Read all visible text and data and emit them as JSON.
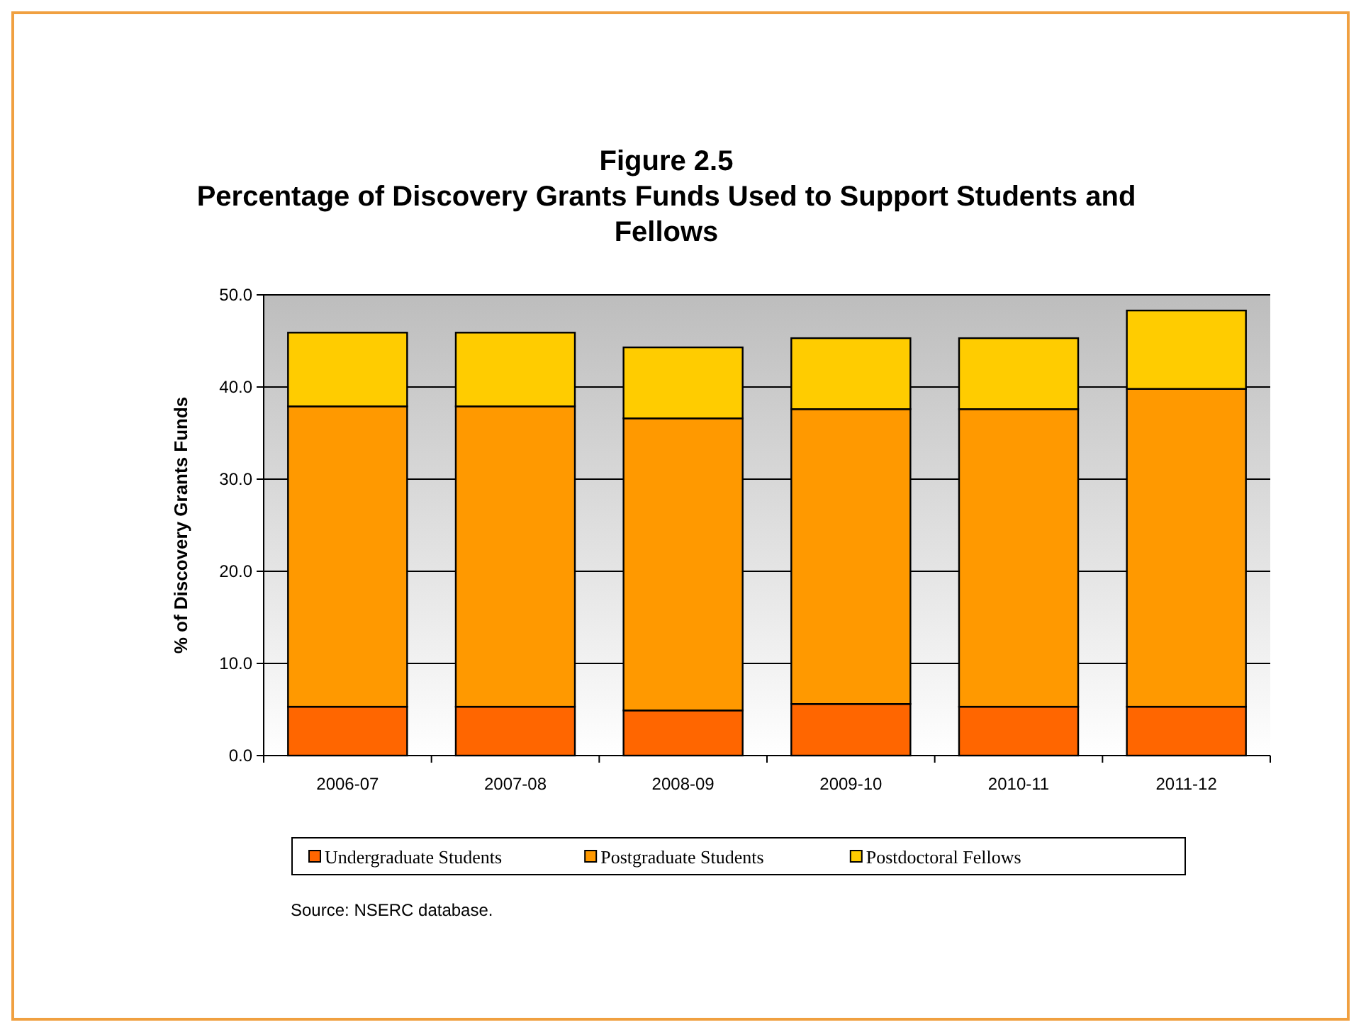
{
  "chart_data": {
    "type": "bar",
    "title": "Figure 2.5",
    "subtitle": "Percentage of Discovery Grants Funds Used to Support Students and Fellows",
    "ylabel": "% of Discovery Grants Funds",
    "categories": [
      "2006-07",
      "2007-08",
      "2008-09",
      "2009-10",
      "2010-11",
      "2011-12"
    ],
    "stacked": true,
    "series": [
      {
        "name": "Undergraduate Students",
        "color": "#ff6600",
        "values": [
          5.3,
          5.3,
          4.9,
          5.6,
          5.3,
          5.3
        ]
      },
      {
        "name": "Postgraduate Students",
        "color": "#ff9900",
        "values": [
          32.6,
          32.6,
          31.7,
          32.0,
          32.3,
          34.5
        ]
      },
      {
        "name": "Postdoctoral Fellows",
        "color": "#ffcc00",
        "values": [
          8.0,
          8.0,
          7.7,
          7.7,
          7.7,
          8.5
        ]
      }
    ],
    "ylim": [
      0,
      50
    ],
    "yticks": [
      {
        "value": 0,
        "label": "0.0"
      },
      {
        "value": 10,
        "label": "10.0"
      },
      {
        "value": 20,
        "label": "20.0"
      },
      {
        "value": 30,
        "label": "30.0"
      },
      {
        "value": 40,
        "label": "40.0"
      },
      {
        "value": 50,
        "label": "50.0"
      }
    ],
    "grid": "y",
    "legend": "bottom",
    "annotations": [
      "Source: NSERC database."
    ]
  }
}
